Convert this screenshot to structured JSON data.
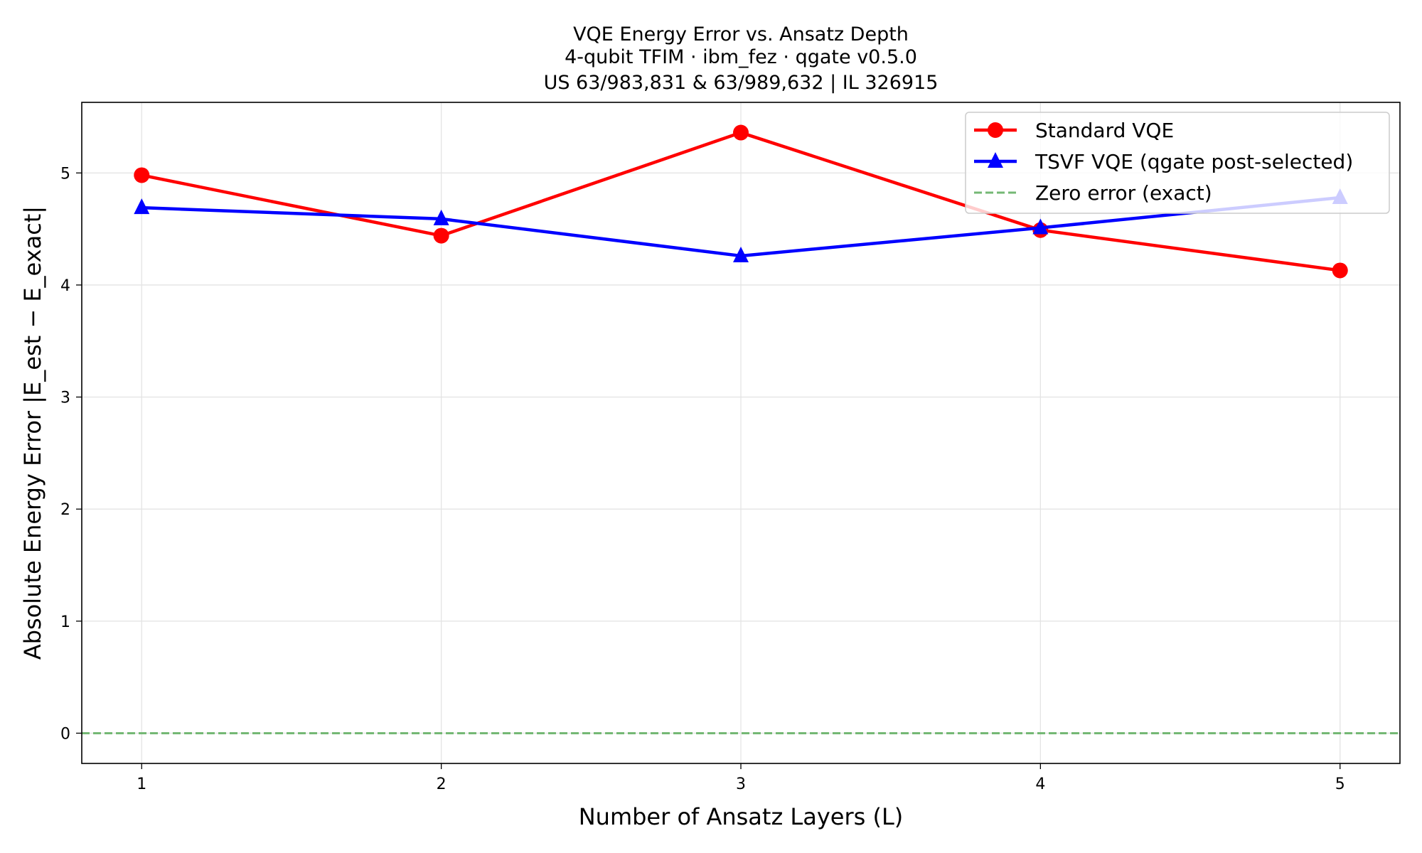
{
  "chart_data": {
    "type": "line",
    "title": [
      "VQE Energy Error vs. Ansatz Depth",
      "4-qubit TFIM · ibm_fez · qgate v0.5.0",
      "US 63/983,831 & 63/989,632 | IL 326915"
    ],
    "xlabel": "Number of Ansatz Layers (L)",
    "ylabel": "Absolute Energy Error |E_est − E_exact|",
    "x": [
      1,
      2,
      3,
      4,
      5
    ],
    "xticks": [
      "1",
      "2",
      "3",
      "4",
      "5"
    ],
    "yticks": [
      "0",
      "1",
      "2",
      "3",
      "4",
      "5"
    ],
    "xlim": [
      0.8,
      5.2
    ],
    "ylim": [
      -0.27,
      5.63
    ],
    "grid": true,
    "legend_position": "top-right",
    "series": [
      {
        "name": "Standard VQE",
        "values": [
          4.98,
          4.44,
          5.36,
          4.49,
          4.13
        ],
        "color": "#ff0000",
        "marker": "circle"
      },
      {
        "name": "TSVF VQE (qgate post-selected)",
        "values": [
          4.69,
          4.59,
          4.26,
          4.51,
          4.78
        ],
        "color": "#0000ff",
        "marker": "triangle"
      }
    ],
    "reference_line": {
      "name": "Zero error (exact)",
      "y": 0,
      "color": "#74b874",
      "style": "dashed"
    }
  }
}
